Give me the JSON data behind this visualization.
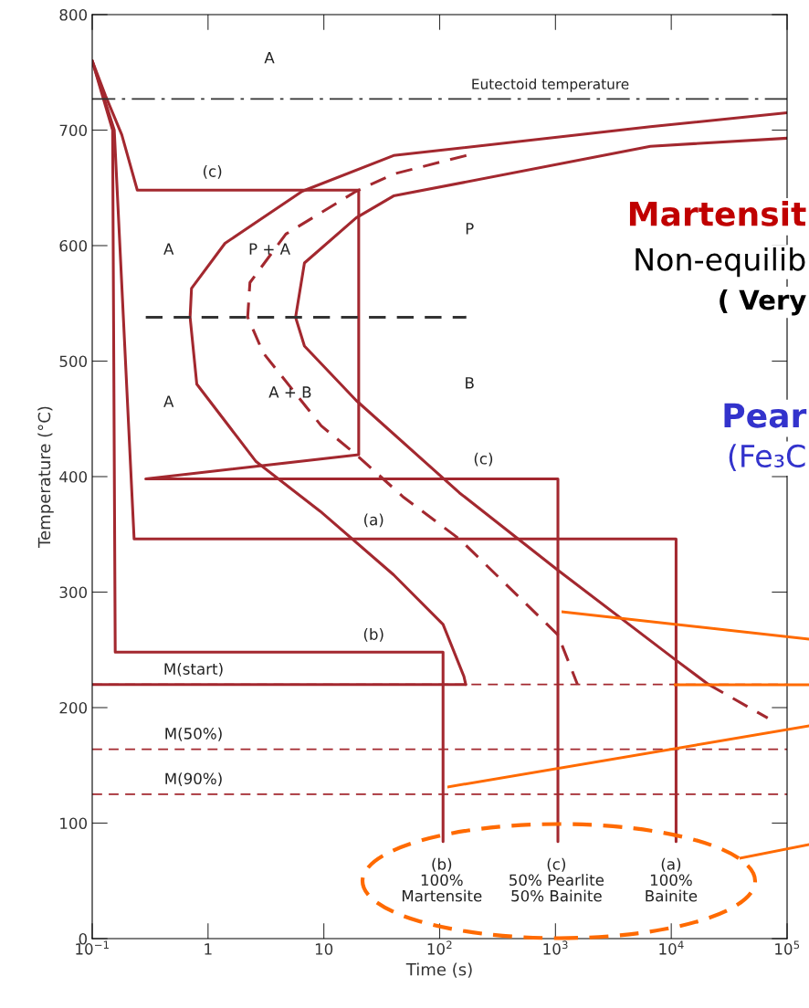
{
  "chart_data": {
    "type": "line",
    "xlabel": "Time (s)",
    "ylabel": "Temperature (°C)",
    "log": "x",
    "xlim": [
      0.1,
      100000
    ],
    "ylim": [
      0,
      800
    ],
    "xticks": [
      {
        "value": 0.1,
        "label": "10$^{−1}$"
      },
      1,
      10,
      {
        "value": 100,
        "label": "10$^{2}$"
      },
      {
        "value": 1000,
        "label": "10$^{3}$"
      },
      {
        "value": 10000,
        "label": "10$^{4}$"
      },
      {
        "value": 100000,
        "label": "10$^{5}$"
      }
    ],
    "yticks": [
      0,
      100,
      200,
      300,
      400,
      500,
      600,
      700,
      800
    ],
    "grid": false,
    "marker": "none",
    "series": [
      {
        "color": "#a3282f",
        "line_style": "solid",
        "x": [
          100000,
          6600,
          40,
          6.5,
          1.4,
          0.72,
          0.7,
          0.8,
          2.6,
          9.3,
          40,
          107,
          162,
          168
        ],
        "values": [
          715,
          703,
          678,
          647,
          602,
          563,
          538,
          480,
          413,
          370,
          315,
          272,
          227,
          220
        ]
      },
      {
        "color": "#a3282f",
        "line_style": "solid",
        "x": [
          100000,
          6600,
          40,
          19,
          6.8,
          5.7,
          6.8,
          19,
          148,
          1050,
          11000,
          21000
        ],
        "values": [
          693,
          686,
          643,
          624,
          585,
          538,
          513,
          466,
          386,
          319,
          241,
          220
        ]
      },
      {
        "color": "#a3282f",
        "line_style": "dashed",
        "x": [
          21000,
          68000
        ],
        "values": [
          220,
          191
        ]
      },
      {
        "color": "#a3282f",
        "line_style": "dashed",
        "x": [
          170,
          40,
          19,
          4.7,
          2.3,
          2.2,
          3.0,
          9.5,
          19,
          49,
          148,
          1050,
          1550
        ],
        "values": [
          678,
          662,
          647,
          610,
          568,
          538,
          507,
          444,
          419,
          382,
          346,
          263,
          220
        ]
      },
      {
        "color": "#a3282f",
        "line_style": "solid",
        "x": [
          0.1,
          0.13,
          0.18,
          0.245,
          20,
          20,
          0.29,
          1050,
          1050
        ],
        "values": [
          760,
          730,
          696,
          648,
          648,
          419,
          398,
          398,
          84
        ]
      },
      {
        "color": "#a3282f",
        "line_style": "solid",
        "x": [
          0.1,
          0.155,
          0.23,
          11000,
          11000
        ],
        "values": [
          760,
          700,
          346,
          346,
          84
        ]
      },
      {
        "color": "#a3282f",
        "line_style": "solid",
        "x": [
          0.1,
          0.15,
          0.158,
          107,
          107
        ],
        "values": [
          760,
          700,
          248,
          248,
          84
        ]
      },
      {
        "color": "#a3282f",
        "line_style": "solid",
        "x": [
          0.1,
          168
        ],
        "values": [
          220,
          220
        ]
      },
      {
        "color": "#333333",
        "line_style": "dashed",
        "x": [
          0.29,
          170
        ],
        "values": [
          538,
          538
        ]
      }
    ],
    "ref_lines": [
      {
        "axis": "y",
        "value": 727,
        "label": "Eutectoid temperature",
        "color": "#333333",
        "line_style": "dashdot"
      },
      {
        "axis": "y",
        "value": 220,
        "label": "M(start)",
        "color": "#a3282f",
        "line_style": "dashed"
      },
      {
        "axis": "y",
        "value": 164,
        "label": "M(50%)",
        "color": "#a3282f",
        "line_style": "dashed"
      },
      {
        "axis": "y",
        "value": 125,
        "label": "M(90%)",
        "color": "#a3282f",
        "line_style": "dashed"
      }
    ],
    "annotations": [
      "A",
      "A",
      "A",
      "P + A",
      "A + B",
      "P",
      "B",
      "(c)",
      "(c)",
      "(a)",
      "(b)",
      "(b)\n100%\nMartensite",
      "(c)\n50% Pearlite\n50% Bainite",
      "(a)\n100%\nBainite",
      "Martensit",
      "Non-equilib",
      "( Very",
      "Pear",
      "(Fe₃C"
    ]
  }
}
